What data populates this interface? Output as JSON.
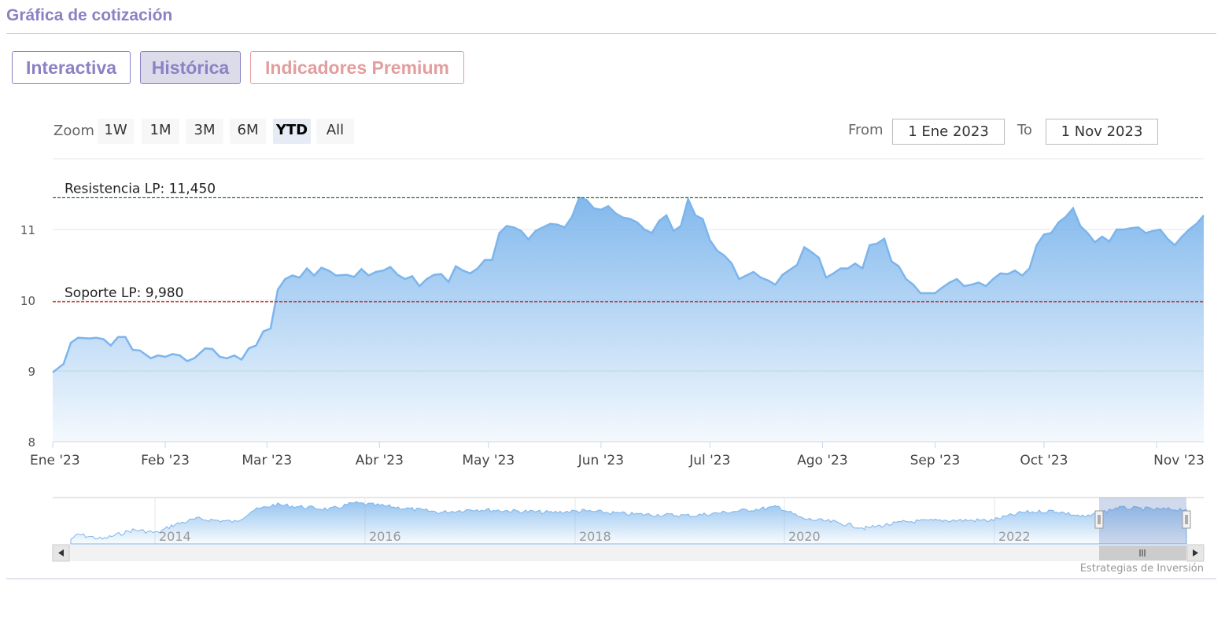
{
  "header": {
    "title": "Gráfica de cotización"
  },
  "tabs": [
    {
      "label": "Interactiva"
    },
    {
      "label": "Histórica"
    },
    {
      "label": "Indicadores Premium"
    }
  ],
  "range_selector": {
    "zoom_label": "Zoom",
    "buttons": [
      "1W",
      "1M",
      "3M",
      "6M",
      "YTD",
      "All"
    ],
    "active": "YTD",
    "from_label": "From",
    "from_value": "1 Ene 2023",
    "to_label": "To",
    "to_value": "1 Nov 2023"
  },
  "navigator": {
    "labels": [
      "2014",
      "2016",
      "2018",
      "2020",
      "2022"
    ]
  },
  "credits": "Estrategias de Inversión",
  "colors": {
    "accent": "#8a82c4",
    "premium": "#e39d9d",
    "series_line": "#7cb5ec",
    "resistance": "#2e7d32",
    "support": "#c62828"
  },
  "icons": {
    "scroll_left": "triangle-left-icon",
    "scroll_right": "triangle-right-icon",
    "handle": "grip-icon"
  },
  "chart_data": {
    "type": "area",
    "x_tick_labels": [
      "Ene '23",
      "Feb '23",
      "Mar '23",
      "Abr '23",
      "May '23",
      "Jun '23",
      "Jul '23",
      "Ago '23",
      "Sep '23",
      "Oct '23",
      "Nov '23"
    ],
    "y_tick_labels": [
      "8",
      "9",
      "10",
      "11"
    ],
    "ylim": [
      8,
      12
    ],
    "x_range": [
      "2023-01-01",
      "2023-11-01"
    ],
    "grid": true,
    "plot_lines": [
      {
        "label": "Resistencia LP: 11,450",
        "value": 11.45,
        "style": "dashed",
        "color": "#2e7d32"
      },
      {
        "label": "Soporte LP: 9,980",
        "value": 9.98,
        "style": "dashed",
        "color": "#c62828"
      }
    ],
    "series": [
      {
        "points": [
          [
            "2023-01-01",
            8.98
          ],
          [
            "2023-01-04",
            9.1
          ],
          [
            "2023-01-06",
            9.4
          ],
          [
            "2023-01-08",
            9.47
          ],
          [
            "2023-01-11",
            9.46
          ],
          [
            "2023-01-13",
            9.47
          ],
          [
            "2023-01-15",
            9.45
          ],
          [
            "2023-01-17",
            9.36
          ],
          [
            "2023-01-19",
            9.48
          ],
          [
            "2023-01-21",
            9.48
          ],
          [
            "2023-01-23",
            9.3
          ],
          [
            "2023-01-25",
            9.29
          ],
          [
            "2023-01-28",
            9.18
          ],
          [
            "2023-01-30",
            9.22
          ],
          [
            "2023-02-01",
            9.2
          ],
          [
            "2023-02-03",
            9.24
          ],
          [
            "2023-02-05",
            9.22
          ],
          [
            "2023-02-07",
            9.14
          ],
          [
            "2023-02-09",
            9.18
          ],
          [
            "2023-02-12",
            9.32
          ],
          [
            "2023-02-14",
            9.31
          ],
          [
            "2023-02-16",
            9.2
          ],
          [
            "2023-02-18",
            9.18
          ],
          [
            "2023-02-20",
            9.22
          ],
          [
            "2023-02-22",
            9.16
          ],
          [
            "2023-02-24",
            9.32
          ],
          [
            "2023-02-26",
            9.36
          ],
          [
            "2023-02-28",
            9.56
          ],
          [
            "2023-03-02",
            9.6
          ],
          [
            "2023-03-04",
            10.15
          ],
          [
            "2023-03-06",
            10.3
          ],
          [
            "2023-03-08",
            10.35
          ],
          [
            "2023-03-10",
            10.32
          ],
          [
            "2023-03-12",
            10.45
          ],
          [
            "2023-03-14",
            10.35
          ],
          [
            "2023-03-16",
            10.46
          ],
          [
            "2023-03-18",
            10.42
          ],
          [
            "2023-03-20",
            10.35
          ],
          [
            "2023-03-23",
            10.36
          ],
          [
            "2023-03-25",
            10.33
          ],
          [
            "2023-03-27",
            10.44
          ],
          [
            "2023-03-29",
            10.35
          ],
          [
            "2023-03-31",
            10.4
          ],
          [
            "2023-04-02",
            10.42
          ],
          [
            "2023-04-04",
            10.47
          ],
          [
            "2023-04-06",
            10.36
          ],
          [
            "2023-04-08",
            10.3
          ],
          [
            "2023-04-10",
            10.34
          ],
          [
            "2023-04-12",
            10.2
          ],
          [
            "2023-04-14",
            10.3
          ],
          [
            "2023-04-16",
            10.36
          ],
          [
            "2023-04-18",
            10.37
          ],
          [
            "2023-04-20",
            10.26
          ],
          [
            "2023-04-22",
            10.48
          ],
          [
            "2023-04-24",
            10.42
          ],
          [
            "2023-04-26",
            10.38
          ],
          [
            "2023-04-28",
            10.45
          ],
          [
            "2023-04-30",
            10.57
          ],
          [
            "2023-05-02",
            10.57
          ],
          [
            "2023-05-04",
            10.95
          ],
          [
            "2023-05-06",
            11.05
          ],
          [
            "2023-05-08",
            11.03
          ],
          [
            "2023-05-10",
            10.98
          ],
          [
            "2023-05-12",
            10.86
          ],
          [
            "2023-05-14",
            10.98
          ],
          [
            "2023-05-16",
            11.03
          ],
          [
            "2023-05-18",
            11.08
          ],
          [
            "2023-05-20",
            11.07
          ],
          [
            "2023-05-22",
            11.03
          ],
          [
            "2023-05-24",
            11.18
          ],
          [
            "2023-05-26",
            11.45
          ],
          [
            "2023-05-28",
            11.42
          ],
          [
            "2023-05-30",
            11.3
          ],
          [
            "2023-06-01",
            11.28
          ],
          [
            "2023-06-03",
            11.33
          ],
          [
            "2023-06-05",
            11.23
          ],
          [
            "2023-06-07",
            11.17
          ],
          [
            "2023-06-09",
            11.15
          ],
          [
            "2023-06-11",
            11.1
          ],
          [
            "2023-06-13",
            11.0
          ],
          [
            "2023-06-15",
            10.95
          ],
          [
            "2023-06-17",
            11.12
          ],
          [
            "2023-06-19",
            11.2
          ],
          [
            "2023-06-21",
            10.98
          ],
          [
            "2023-06-23",
            11.05
          ],
          [
            "2023-06-25",
            11.43
          ],
          [
            "2023-06-27",
            11.2
          ],
          [
            "2023-06-29",
            11.15
          ],
          [
            "2023-07-01",
            10.85
          ],
          [
            "2023-07-03",
            10.7
          ],
          [
            "2023-07-05",
            10.63
          ],
          [
            "2023-07-07",
            10.52
          ],
          [
            "2023-07-09",
            10.3
          ],
          [
            "2023-07-11",
            10.35
          ],
          [
            "2023-07-13",
            10.4
          ],
          [
            "2023-07-15",
            10.32
          ],
          [
            "2023-07-17",
            10.28
          ],
          [
            "2023-07-19",
            10.22
          ],
          [
            "2023-07-21",
            10.36
          ],
          [
            "2023-07-23",
            10.43
          ],
          [
            "2023-07-25",
            10.5
          ],
          [
            "2023-07-27",
            10.75
          ],
          [
            "2023-07-29",
            10.68
          ],
          [
            "2023-07-31",
            10.6
          ],
          [
            "2023-08-02",
            10.32
          ],
          [
            "2023-08-04",
            10.38
          ],
          [
            "2023-08-06",
            10.45
          ],
          [
            "2023-08-08",
            10.45
          ],
          [
            "2023-08-10",
            10.52
          ],
          [
            "2023-08-12",
            10.45
          ],
          [
            "2023-08-14",
            10.78
          ],
          [
            "2023-08-16",
            10.8
          ],
          [
            "2023-08-18",
            10.87
          ],
          [
            "2023-08-20",
            10.55
          ],
          [
            "2023-08-22",
            10.48
          ],
          [
            "2023-08-24",
            10.3
          ],
          [
            "2023-08-26",
            10.22
          ],
          [
            "2023-08-28",
            10.1
          ],
          [
            "2023-08-30",
            10.1
          ],
          [
            "2023-09-01",
            10.1
          ],
          [
            "2023-09-03",
            10.18
          ],
          [
            "2023-09-05",
            10.25
          ],
          [
            "2023-09-07",
            10.3
          ],
          [
            "2023-09-09",
            10.2
          ],
          [
            "2023-09-11",
            10.22
          ],
          [
            "2023-09-13",
            10.25
          ],
          [
            "2023-09-15",
            10.2
          ],
          [
            "2023-09-17",
            10.3
          ],
          [
            "2023-09-19",
            10.38
          ],
          [
            "2023-09-21",
            10.37
          ],
          [
            "2023-09-23",
            10.42
          ],
          [
            "2023-09-25",
            10.35
          ],
          [
            "2023-09-27",
            10.45
          ],
          [
            "2023-09-29",
            10.78
          ],
          [
            "2023-10-01",
            10.93
          ],
          [
            "2023-10-03",
            10.95
          ],
          [
            "2023-10-05",
            11.1
          ],
          [
            "2023-10-07",
            11.18
          ],
          [
            "2023-10-09",
            11.3
          ],
          [
            "2023-10-11",
            11.05
          ],
          [
            "2023-10-13",
            10.95
          ],
          [
            "2023-10-15",
            10.82
          ],
          [
            "2023-10-17",
            10.9
          ],
          [
            "2023-10-19",
            10.83
          ],
          [
            "2023-10-21",
            11.0
          ],
          [
            "2023-10-23",
            11.0
          ],
          [
            "2023-10-25",
            11.02
          ],
          [
            "2023-10-27",
            11.03
          ],
          [
            "2023-10-29",
            10.95
          ],
          [
            "2023-10-31",
            10.98
          ],
          [
            "2023-11-02",
            11.0
          ],
          [
            "2023-11-04",
            10.87
          ],
          [
            "2023-11-06",
            10.78
          ],
          [
            "2023-11-08",
            10.9
          ],
          [
            "2023-11-10",
            11.0
          ],
          [
            "2023-11-12",
            11.08
          ],
          [
            "2023-11-14",
            11.2
          ]
        ]
      }
    ]
  }
}
